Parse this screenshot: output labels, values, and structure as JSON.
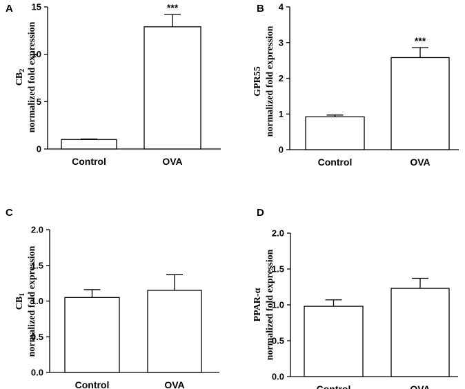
{
  "chart_data": [
    {
      "panel": "A",
      "type": "bar",
      "categories": [
        "Control",
        "OVA"
      ],
      "values": [
        1.0,
        12.9
      ],
      "errors": [
        0.05,
        1.3
      ],
      "significance": [
        "",
        "***"
      ],
      "ylabel_line1": "CB",
      "ylabel_sub": "2",
      "ylabel_line2": "normalized fold expression",
      "ylim": [
        0,
        15
      ],
      "yticks": [
        0,
        5,
        10,
        15
      ],
      "ytick_labels": [
        "0",
        "5",
        "10",
        "15"
      ]
    },
    {
      "panel": "B",
      "type": "bar",
      "categories": [
        "Control",
        "OVA"
      ],
      "values": [
        0.92,
        2.58
      ],
      "errors": [
        0.05,
        0.28
      ],
      "significance": [
        "",
        "***"
      ],
      "ylabel_line1": "GPR55",
      "ylabel_sub": "",
      "ylabel_line2": "normalized fold expression",
      "ylim": [
        0,
        4
      ],
      "yticks": [
        0,
        1,
        2,
        3,
        4
      ],
      "ytick_labels": [
        "0",
        "1",
        "2",
        "3",
        "4"
      ]
    },
    {
      "panel": "C",
      "type": "bar",
      "categories": [
        "Control",
        "OVA"
      ],
      "values": [
        1.05,
        1.15
      ],
      "errors": [
        0.11,
        0.22
      ],
      "significance": [
        "",
        ""
      ],
      "ylabel_line1": "CB",
      "ylabel_sub": "1",
      "ylabel_line2": "normalized fold expression",
      "ylim": [
        0,
        2.0
      ],
      "yticks": [
        0,
        0.5,
        1.0,
        1.5,
        2.0
      ],
      "ytick_labels": [
        "0.0",
        "0.5",
        "1.0",
        "1.5",
        "2.0"
      ]
    },
    {
      "panel": "D",
      "type": "bar",
      "categories": [
        "Control",
        "OVA"
      ],
      "values": [
        0.98,
        1.23
      ],
      "errors": [
        0.09,
        0.14
      ],
      "significance": [
        "",
        ""
      ],
      "ylabel_line1": "PPAR-α",
      "ylabel_sub": "",
      "ylabel_line2": "normalized fold expression",
      "ylim": [
        0,
        2.0
      ],
      "yticks": [
        0,
        0.5,
        1.0,
        1.5,
        2.0
      ],
      "ytick_labels": [
        "0.0",
        "0.5",
        "1.0",
        "1.5",
        "2.0"
      ]
    }
  ]
}
